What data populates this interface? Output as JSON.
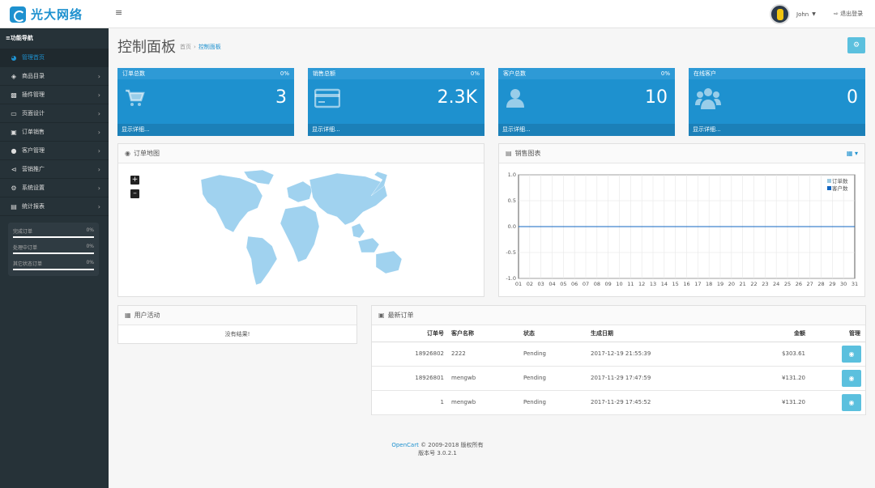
{
  "header": {
    "brand": "光大网络",
    "user_name": "John",
    "logout_label": "退出登录"
  },
  "sidebar": {
    "title": "功能导航",
    "items": [
      {
        "label": "管理首页",
        "icon": "dashboard-icon",
        "active": true
      },
      {
        "label": "商品目录",
        "icon": "tags-icon"
      },
      {
        "label": "插件管理",
        "icon": "puzzle-icon"
      },
      {
        "label": "页面设计",
        "icon": "monitor-icon"
      },
      {
        "label": "订单销售",
        "icon": "cart-icon"
      },
      {
        "label": "客户管理",
        "icon": "user-icon"
      },
      {
        "label": "营销推广",
        "icon": "share-icon"
      },
      {
        "label": "系统设置",
        "icon": "cog-icon"
      },
      {
        "label": "统计报表",
        "icon": "bar-chart-icon"
      }
    ],
    "stats": [
      {
        "label": "完成订单",
        "value": "0%"
      },
      {
        "label": "处理中订单",
        "value": "0%"
      },
      {
        "label": "其它状态订单",
        "value": "0%"
      }
    ]
  },
  "page": {
    "title": "控制面板",
    "breadcrumb": [
      "首页",
      "控制面板"
    ]
  },
  "tiles": [
    {
      "title": "订单总数",
      "percent": "0%",
      "value": "3",
      "footer": "显示详细...",
      "icon": "cart-icon"
    },
    {
      "title": "销售总额",
      "percent": "0%",
      "value": "2.3K",
      "footer": "显示详细...",
      "icon": "credit-card-icon"
    },
    {
      "title": "客户总数",
      "percent": "0%",
      "value": "10",
      "footer": "显示详细...",
      "icon": "user-icon"
    },
    {
      "title": "在线客户",
      "percent": "",
      "value": "0",
      "footer": "显示详细...",
      "icon": "users-icon"
    }
  ],
  "map_panel": {
    "title": "订单地图"
  },
  "chart_panel": {
    "title": "销售图表"
  },
  "chart_data": {
    "type": "line",
    "x": [
      "01",
      "02",
      "03",
      "04",
      "05",
      "06",
      "07",
      "08",
      "09",
      "10",
      "11",
      "12",
      "13",
      "14",
      "15",
      "16",
      "17",
      "18",
      "19",
      "20",
      "21",
      "22",
      "23",
      "24",
      "25",
      "26",
      "27",
      "28",
      "29",
      "30",
      "31"
    ],
    "series": [
      {
        "name": "订单数",
        "values": [
          0,
          0,
          0,
          0,
          0,
          0,
          0,
          0,
          0,
          0,
          0,
          0,
          0,
          0,
          0,
          0,
          0,
          0,
          0,
          0,
          0,
          0,
          0,
          0,
          0,
          0,
          0,
          0,
          0,
          0,
          0
        ],
        "color": "#9ecae1"
      },
      {
        "name": "客户数",
        "values": [
          0,
          0,
          0,
          0,
          0,
          0,
          0,
          0,
          0,
          0,
          0,
          0,
          0,
          0,
          0,
          0,
          0,
          0,
          0,
          0,
          0,
          0,
          0,
          0,
          0,
          0,
          0,
          0,
          0,
          0,
          0
        ],
        "color": "#1065c1"
      }
    ],
    "yticks": [
      "1.0",
      "0.5",
      "0.0",
      "-0.5",
      "-1.0"
    ],
    "ylim": [
      -1,
      1
    ],
    "grid": true,
    "legend": "top-right"
  },
  "activity": {
    "title": "用户活动",
    "empty": "没有结果!"
  },
  "orders": {
    "title": "最新订单",
    "columns": [
      "订单号",
      "客户名称",
      "状态",
      "生成日期",
      "金额",
      "管理"
    ],
    "rows": [
      {
        "id": "18926802",
        "customer": "2222",
        "status": "Pending",
        "date": "2017-12-19 21:55:39",
        "total": "$303.61"
      },
      {
        "id": "18926801",
        "customer": "mengwb",
        "status": "Pending",
        "date": "2017-11-29 17:47:59",
        "total": "¥131.20"
      },
      {
        "id": "1",
        "customer": "mengwb",
        "status": "Pending",
        "date": "2017-11-29 17:45:52",
        "total": "¥131.20"
      }
    ]
  },
  "footer": {
    "brand_link": "OpenCart",
    "copyright": "© 2009-2018 版权所有",
    "version": "版本号 3.0.2.1"
  }
}
